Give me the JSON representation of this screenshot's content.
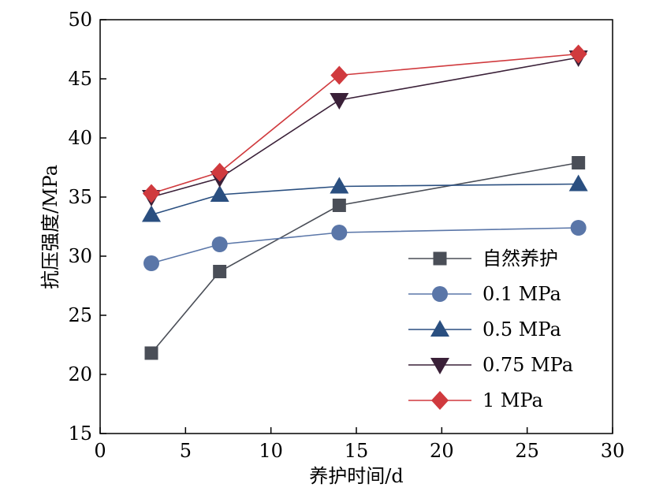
{
  "chart_data": {
    "type": "line",
    "title": "",
    "xlabel": "养护时间/d",
    "ylabel": "抗压强度/MPa",
    "xlim": [
      0,
      30
    ],
    "ylim": [
      15,
      50
    ],
    "xticks": [
      "0",
      "5",
      "10",
      "15",
      "20",
      "25",
      "30"
    ],
    "yticks": [
      "15",
      "20",
      "25",
      "30",
      "35",
      "40",
      "45",
      "50"
    ],
    "grid": false,
    "legend_position": "bottom-right",
    "x": [
      3,
      7,
      14,
      28
    ],
    "series": [
      {
        "name": "自然养护",
        "values": [
          21.8,
          28.7,
          34.3,
          37.9
        ],
        "marker": "square",
        "color": "#4a4e57"
      },
      {
        "name": "0.1 MPa",
        "values": [
          29.4,
          31.0,
          32.0,
          32.4
        ],
        "marker": "circle",
        "color": "#5a76a8"
      },
      {
        "name": "0.5 MPa",
        "values": [
          33.5,
          35.2,
          35.9,
          36.1
        ],
        "marker": "triangle-up",
        "color": "#2a4f80"
      },
      {
        "name": "0.75 MPa",
        "values": [
          35.0,
          36.6,
          43.2,
          46.8
        ],
        "marker": "triangle-down",
        "color": "#3a2038"
      },
      {
        "name": "1 MPa",
        "values": [
          35.3,
          37.1,
          45.3,
          47.1
        ],
        "marker": "diamond",
        "color": "#d03a3e"
      }
    ]
  }
}
